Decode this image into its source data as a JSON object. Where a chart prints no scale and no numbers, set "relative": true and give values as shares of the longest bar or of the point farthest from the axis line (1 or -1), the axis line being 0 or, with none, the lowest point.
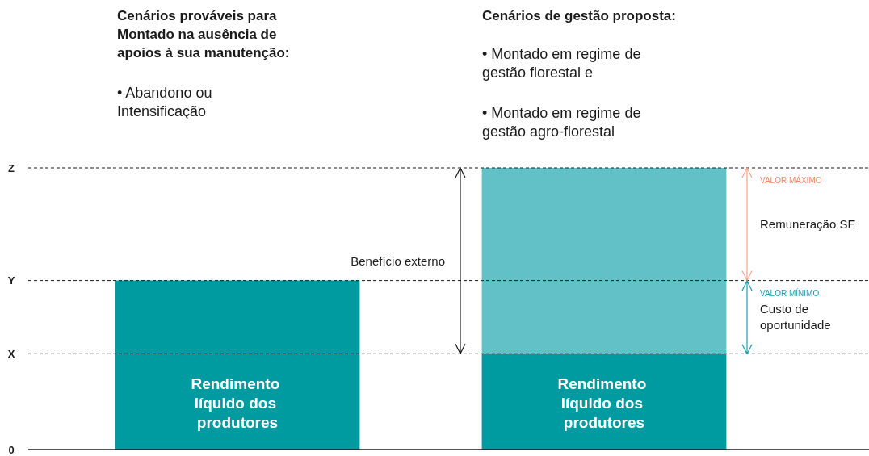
{
  "chart_data": {
    "type": "bar",
    "relative": true,
    "stacked": true,
    "categories": [
      null,
      null
    ],
    "series": [
      {
        "name": "Rendimento líquido dos produtores",
        "color": "#009ba1",
        "values": [
          0.6,
          0.34
        ]
      },
      {
        "color": "#62c1c7",
        "values": [
          null,
          0.66
        ]
      }
    ],
    "ref_lines": [
      {
        "axis": "y",
        "value": 0,
        "label": "0",
        "line_style": "solid",
        "color": "#1a1a1a"
      },
      {
        "axis": "y",
        "value": 0.34,
        "label": "X",
        "line_style": "dashed",
        "color": "#1a1a1a"
      },
      {
        "axis": "y",
        "value": 0.6,
        "label": "Y",
        "line_style": "dashed",
        "color": "#1a1a1a"
      },
      {
        "axis": "y",
        "value": 1,
        "label": "Z",
        "line_style": "dashed",
        "color": "#1a1a1a"
      }
    ],
    "annotations": [
      "Cenários prováveis para Montado na ausência de apoios à sua manutenção:",
      "• Abandono ou Intensificação",
      "Cenários de gestão proposta:",
      "• Montado em regime de gestão florestal e",
      "• Montado em regime de gestão agro-florestal",
      "Benefício externo",
      "VALOR MÁXIMO",
      "Remuneração SE",
      "VALOR MÍNIMO",
      "Custo de oportunidade"
    ]
  }
}
